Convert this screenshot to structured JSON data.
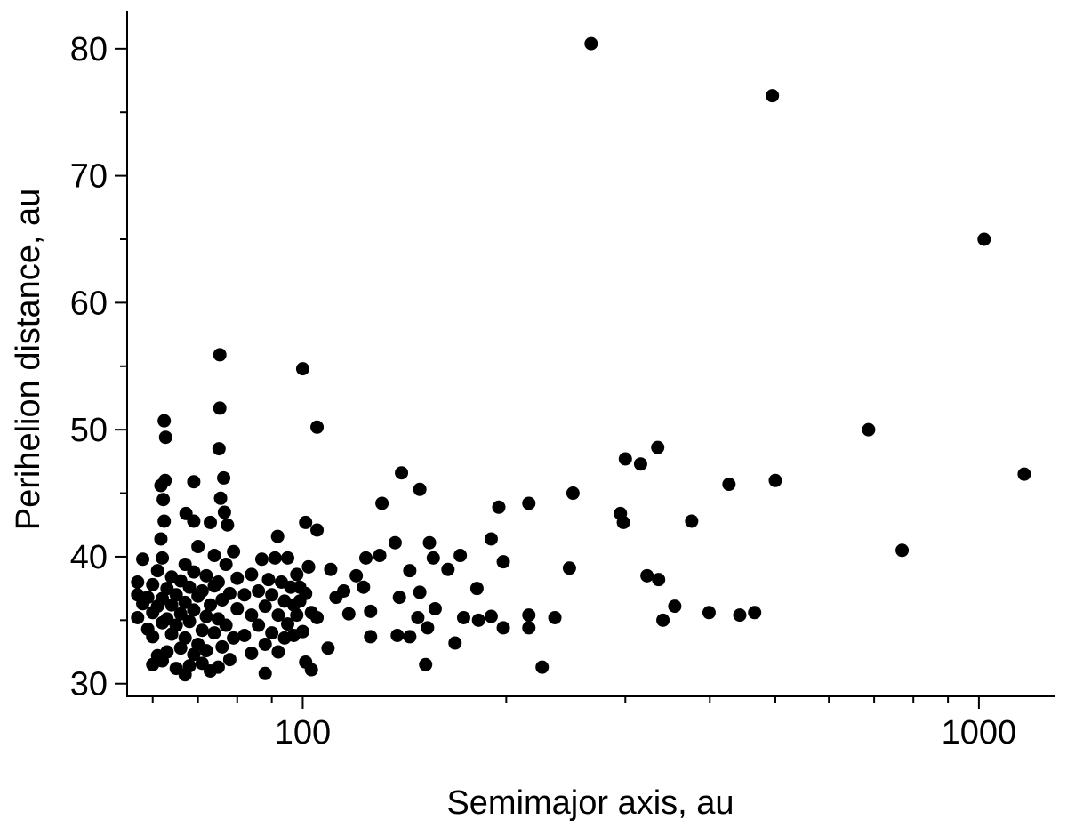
{
  "chart_data": {
    "type": "scatter",
    "x_label": "Semimajor axis, au",
    "y_label": "Perihelion distance, au",
    "xscale": "log",
    "xlim": [
      55,
      1290
    ],
    "ylim": [
      29,
      83
    ],
    "xticks": [
      100,
      1000
    ],
    "xminorticks": [
      60,
      70,
      80,
      90,
      200,
      300,
      400,
      500,
      600,
      700,
      800,
      900
    ],
    "yticks": [
      30,
      40,
      50,
      60,
      70,
      80
    ],
    "yminorticks": [
      35,
      45,
      55,
      65,
      75
    ],
    "color": "#000000",
    "x": [
      267,
      495,
      1018,
      687,
      1167,
      770,
      500,
      427,
      376,
      323,
      336,
      355,
      341,
      399,
      443,
      466,
      300,
      316,
      335,
      295,
      298,
      251,
      248,
      236,
      226,
      216,
      216,
      216,
      198,
      195,
      198,
      190,
      190,
      181,
      182,
      173,
      171,
      168,
      164,
      157,
      156,
      154,
      152,
      153,
      149,
      149,
      148,
      144,
      140,
      139,
      138,
      144,
      137,
      131,
      130,
      126,
      126,
      123,
      124,
      120,
      117,
      115,
      112,
      110,
      109,
      105,
      105,
      105,
      102,
      101,
      100,
      101,
      103,
      99,
      97,
      75.4,
      75.4,
      75.2,
      76.4,
      75.6,
      76.6,
      62.4,
      62.7,
      62.6,
      61.7,
      62.2,
      62.4,
      61.7,
      69,
      67.2,
      69,
      73,
      77.4,
      91.8,
      57,
      57,
      57,
      58,
      58,
      59,
      59,
      60,
      60,
      60,
      60,
      61,
      61,
      61,
      62,
      62,
      62,
      62,
      63,
      63,
      63,
      64,
      64,
      64,
      65,
      65,
      65,
      66,
      66,
      66,
      67,
      67,
      67,
      67,
      68,
      68,
      68,
      69,
      69,
      69,
      70,
      70,
      70,
      71,
      71,
      71,
      72,
      72,
      72,
      73,
      73,
      74,
      74,
      74,
      75,
      75,
      75,
      76,
      76,
      77,
      77,
      78,
      78,
      79,
      79,
      80,
      80,
      82,
      82,
      84,
      84,
      84,
      86,
      86,
      87,
      88,
      88,
      88,
      89,
      90,
      90,
      91,
      92,
      92,
      93,
      94,
      94,
      95,
      95,
      96,
      97,
      98,
      98,
      99,
      100,
      101,
      102,
      103
    ],
    "y": [
      80.4,
      76.3,
      65.0,
      50.0,
      46.5,
      40.5,
      46.0,
      45.7,
      42.8,
      38.5,
      38.2,
      36.1,
      35.0,
      35.6,
      35.4,
      35.6,
      47.7,
      47.3,
      48.6,
      43.4,
      42.7,
      45.0,
      39.1,
      35.2,
      31.3,
      44.2,
      35.4,
      34.4,
      34.4,
      43.9,
      39.6,
      41.4,
      35.3,
      37.5,
      35.0,
      35.2,
      40.1,
      33.2,
      39.0,
      35.9,
      39.9,
      41.1,
      31.5,
      34.4,
      37.2,
      45.3,
      35.2,
      33.7,
      46.6,
      36.8,
      33.8,
      38.9,
      41.1,
      44.2,
      40.1,
      33.7,
      35.7,
      37.6,
      39.9,
      38.5,
      35.5,
      37.3,
      36.8,
      39.0,
      32.8,
      50.2,
      42.1,
      35.2,
      39.2,
      42.7,
      54.8,
      31.7,
      31.1,
      37.6,
      36.2,
      55.9,
      51.7,
      48.5,
      46.2,
      44.6,
      43.5,
      50.7,
      49.4,
      46.0,
      45.6,
      44.5,
      42.8,
      41.4,
      45.9,
      43.4,
      42.8,
      42.7,
      42.5,
      41.6,
      35.2,
      37.0,
      38.0,
      36.3,
      39.8,
      34.3,
      36.8,
      31.5,
      33.7,
      35.6,
      37.8,
      32.2,
      36.1,
      38.9,
      31.8,
      34.8,
      36.7,
      39.9,
      32.5,
      35.1,
      37.5,
      33.9,
      36.2,
      38.4,
      31.2,
      34.6,
      37.0,
      32.8,
      35.5,
      38.1,
      30.7,
      33.6,
      36.4,
      39.4,
      31.4,
      34.9,
      37.6,
      32.3,
      35.8,
      38.8,
      33.1,
      36.9,
      40.8,
      31.6,
      34.2,
      37.3,
      32.6,
      35.3,
      38.5,
      31.0,
      36.2,
      34.0,
      37.7,
      40.1,
      31.3,
      35.1,
      38.0,
      32.9,
      36.6,
      34.6,
      39.4,
      31.9,
      37.1,
      33.6,
      40.4,
      35.9,
      38.3,
      33.8,
      37.0,
      32.4,
      35.4,
      38.6,
      34.6,
      37.3,
      39.8,
      30.8,
      33.1,
      36.1,
      38.2,
      34.0,
      37.0,
      39.9,
      32.5,
      35.4,
      38.0,
      33.6,
      36.5,
      34.7,
      39.9,
      37.6,
      33.8,
      35.4,
      38.6,
      36.5,
      34.1,
      37.1,
      39.2,
      35.6
    ]
  }
}
